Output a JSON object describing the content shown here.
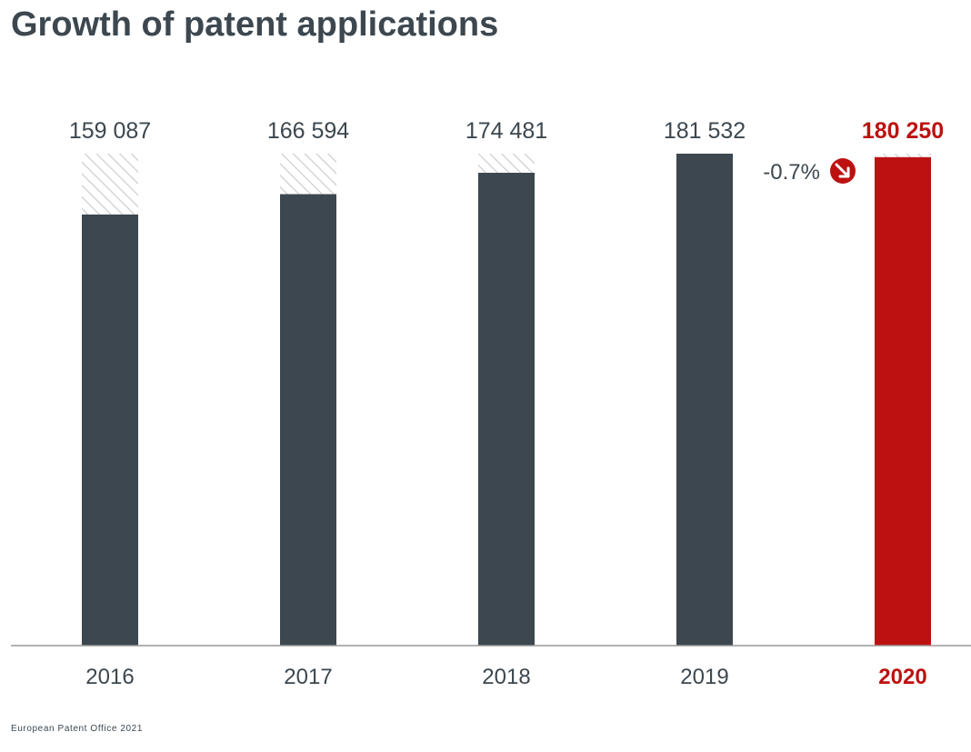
{
  "title": "Growth of patent applications",
  "footer": "European Patent Office 2021",
  "change_label": "-0.7%",
  "colors": {
    "bar": "#3c474f",
    "highlight": "#bd1111",
    "hatch": "#c8c8c8",
    "axis": "#999999",
    "text": "#3c474f"
  },
  "chart_data": {
    "type": "bar",
    "title": "Growth of patent applications",
    "xlabel": "",
    "ylabel": "",
    "categories": [
      "2016",
      "2017",
      "2018",
      "2019",
      "2020"
    ],
    "values": [
      159087,
      166594,
      174481,
      181532,
      180250
    ],
    "value_labels": [
      "159 087",
      "166 594",
      "174 481",
      "181 532",
      "180 250"
    ],
    "highlight_category": "2020",
    "reference_value": 181532,
    "grid": false,
    "legend": "none",
    "annotations": [
      {
        "category": "2020",
        "text": "-0.7%",
        "icon": "arrow-down-right-icon"
      }
    ]
  }
}
